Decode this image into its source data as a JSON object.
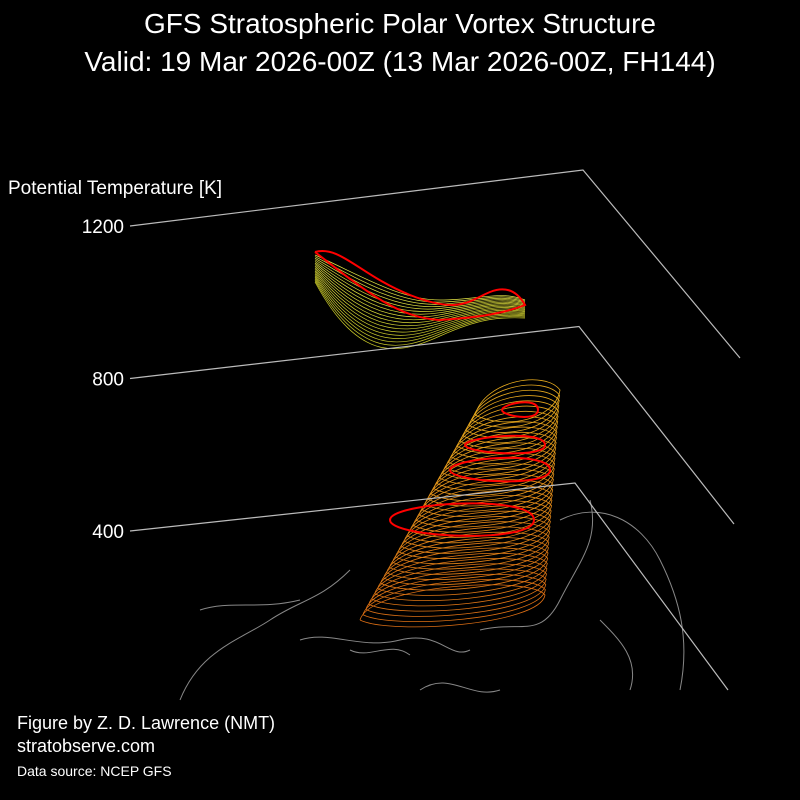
{
  "chart_data": {
    "type": "vortex3d",
    "title": "GFS Stratospheric Polar Vortex Structure",
    "subtitle": "Valid: 19 Mar 2026-00Z  (13 Mar 2026-00Z, FH144)",
    "z_label": "Potential Temperature [K]",
    "zlim": [
      400,
      1200
    ],
    "zticks": [
      400,
      800,
      1200
    ],
    "credit": "Figure by Z. D. Lawrence (NMT)",
    "website": "stratobserve.com",
    "source": "Data source: NCEP GFS"
  }
}
